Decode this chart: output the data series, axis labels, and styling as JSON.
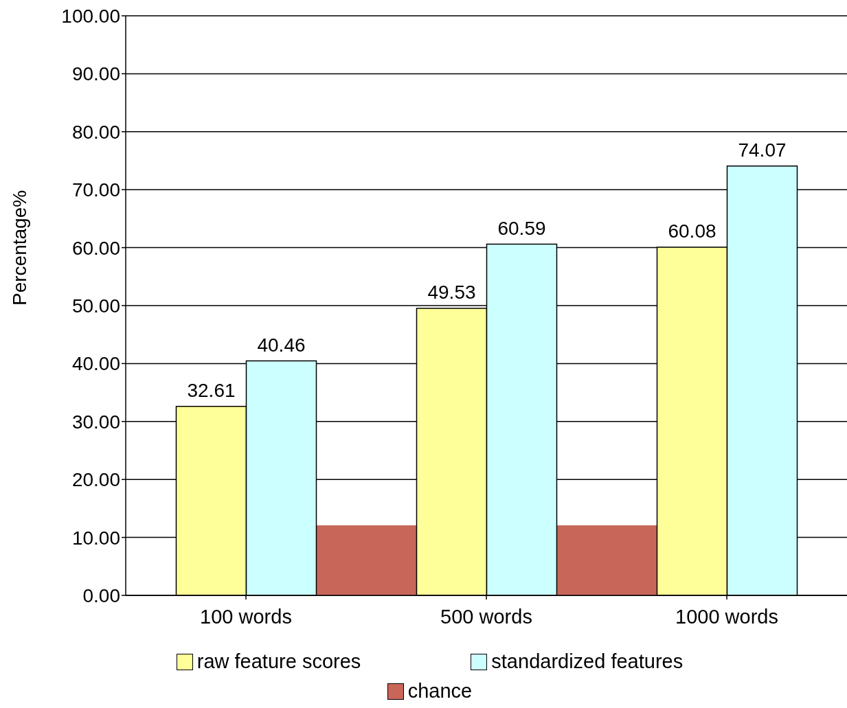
{
  "chart_data": {
    "type": "bar",
    "ylabel": "Percentage%",
    "categories": [
      "100 words",
      "500 words",
      "1000 words"
    ],
    "series": [
      {
        "name": "raw feature scores",
        "color": "#ffff99",
        "values": [
          32.61,
          49.53,
          60.08
        ],
        "value_labels": [
          "32.61",
          "49.53",
          "60.08"
        ]
      },
      {
        "name": "standardized  features",
        "color": "#ccffff",
        "values": [
          40.46,
          60.59,
          74.07
        ],
        "value_labels": [
          "40.46",
          "60.59",
          "74.07"
        ]
      },
      {
        "name": "chance",
        "type": "area",
        "color": "#c8665a",
        "values": [
          12.1,
          12.1,
          12.1
        ]
      }
    ],
    "ylim": [
      0,
      100
    ],
    "yticks": [
      {
        "value": 0,
        "label": "0.00"
      },
      {
        "value": 10,
        "label": "10.00"
      },
      {
        "value": 20,
        "label": "20.00"
      },
      {
        "value": 30,
        "label": "30.00"
      },
      {
        "value": 40,
        "label": "40.00"
      },
      {
        "value": 50,
        "label": "50.00"
      },
      {
        "value": 60,
        "label": "60.00"
      },
      {
        "value": 70,
        "label": "70.00"
      },
      {
        "value": 80,
        "label": "80.00"
      },
      {
        "value": 90,
        "label": "90.00"
      },
      {
        "value": 100,
        "label": "100.00"
      }
    ],
    "grid": "y",
    "legend": "bottom"
  }
}
